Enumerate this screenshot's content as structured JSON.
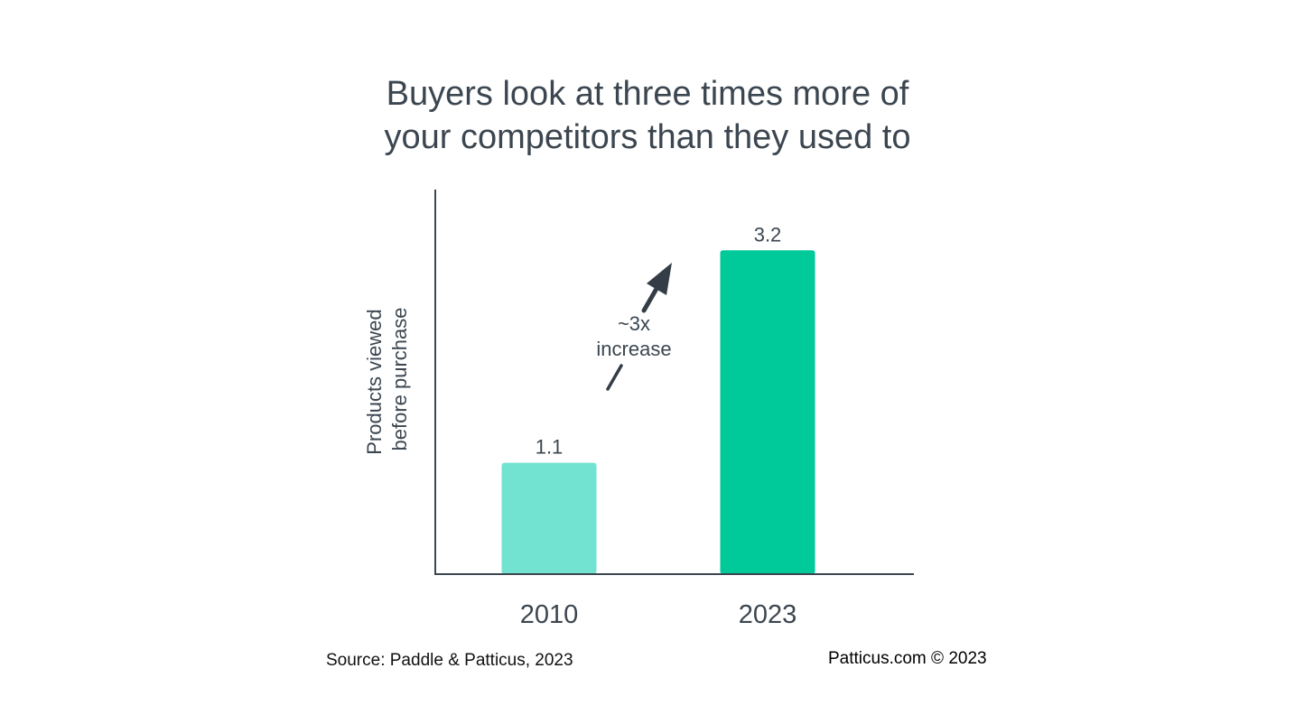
{
  "page": {
    "source": "Source: Paddle & Patticus, 2023",
    "copyright": "Patticus.com © 2023"
  },
  "chart_data": {
    "type": "bar",
    "title_lines": [
      "Buyers look at three times more of",
      "your competitors than they used to"
    ],
    "ylabel_lines": [
      "Products viewed",
      "before purchase"
    ],
    "xlabel": "",
    "categories": [
      "2010",
      "2023"
    ],
    "values": [
      1.1,
      3.2
    ],
    "value_labels": [
      "1.1",
      "3.2"
    ],
    "colors": [
      "#72e3d1",
      "#00c99a"
    ],
    "ylim": [
      0,
      3.8
    ],
    "grid": false,
    "legend": "none",
    "annotation": {
      "lines": [
        "~3x",
        "increase"
      ],
      "arrow_color": "#343d46"
    }
  }
}
